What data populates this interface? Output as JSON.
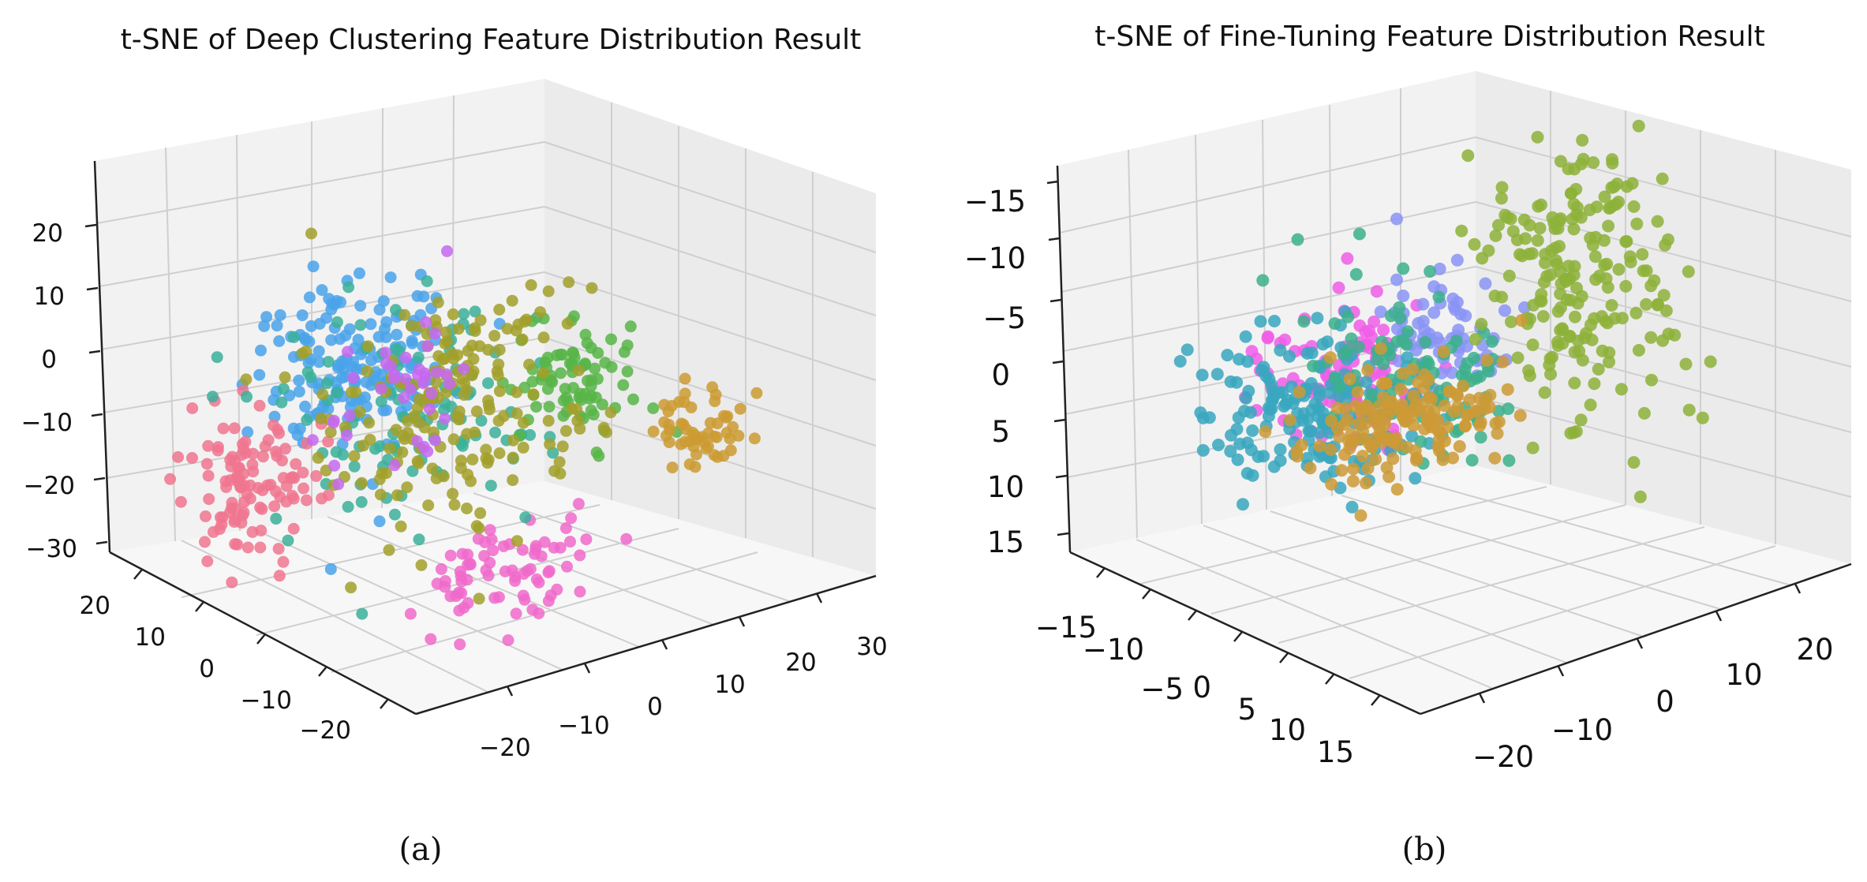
{
  "chart_data": [
    {
      "type": "scatter",
      "projection": "3d",
      "title": "t-SNE of Deep Clustering Feature Distribution Result",
      "caption": "(a)",
      "grid": true,
      "axes": {
        "x": {
          "ticks": [
            "−20",
            "−10",
            "0",
            "10",
            "20",
            "30"
          ],
          "range": [
            -25,
            35
          ]
        },
        "y": {
          "ticks": [
            "20",
            "10",
            "0",
            "−10",
            "−20"
          ],
          "range": [
            -28,
            28
          ]
        },
        "z": {
          "ticks": [
            "20",
            "10",
            "0",
            "−10",
            "−20",
            "−30"
          ],
          "range": [
            -33,
            28
          ]
        }
      },
      "clusters": [
        {
          "color": "#4aa3ea",
          "center": [
            -14,
            -4,
            14
          ],
          "spread": [
            6,
            5,
            6
          ],
          "n": 170
        },
        {
          "color": "#f0758f",
          "center": [
            -18,
            10,
            -10
          ],
          "spread": [
            4,
            4,
            5
          ],
          "n": 110
        },
        {
          "color": "#f06acb",
          "center": [
            2,
            -8,
            -22
          ],
          "spread": [
            6,
            3,
            3
          ],
          "n": 75
        },
        {
          "color": "#3bb09a",
          "center": [
            -4,
            2,
            0
          ],
          "spread": [
            8,
            6,
            7
          ],
          "n": 110
        },
        {
          "color": "#58b548",
          "center": [
            10,
            -12,
            6
          ],
          "spread": [
            4,
            3,
            4
          ],
          "n": 80
        },
        {
          "color": "#a2a02a",
          "center": [
            0,
            -2,
            2
          ],
          "spread": [
            9,
            6,
            9
          ],
          "n": 190
        },
        {
          "color": "#cc9b33",
          "center": [
            22,
            -18,
            -2
          ],
          "spread": [
            3,
            2,
            3
          ],
          "n": 55
        },
        {
          "color": "#c568ee",
          "center": [
            -6,
            0,
            6
          ],
          "spread": [
            5,
            4,
            5
          ],
          "n": 40
        }
      ]
    },
    {
      "type": "scatter",
      "projection": "3d",
      "title": "t-SNE of Fine-Tuning Feature Distribution Result",
      "caption": "(b)",
      "grid": true,
      "axes": {
        "x": {
          "ticks": [
            "−20",
            "−10",
            "0",
            "10",
            "20"
          ],
          "range": [
            -24,
            24
          ]
        },
        "y": {
          "ticks": [
            "−15",
            "−10",
            "−5",
            "0",
            "5",
            "10",
            "15"
          ],
          "range": [
            -18,
            18
          ]
        },
        "z": {
          "ticks": [
            "−15",
            "−10",
            "−5",
            "0",
            "5",
            "10",
            "15"
          ],
          "range": [
            -18,
            18
          ]
        }
      },
      "clusters": [
        {
          "color": "#f05ee8",
          "center": [
            -16,
            -8,
            -6
          ],
          "spread": [
            3,
            3,
            3
          ],
          "n": 110
        },
        {
          "color": "#8a94f4",
          "center": [
            -8,
            -10,
            -8
          ],
          "spread": [
            2.5,
            2.5,
            3
          ],
          "n": 70
        },
        {
          "color": "#38a7be",
          "center": [
            -14,
            -2,
            1
          ],
          "spread": [
            4,
            3.5,
            3.5
          ],
          "n": 170
        },
        {
          "color": "#3cb08c",
          "center": [
            4,
            4,
            5
          ],
          "spread": [
            4,
            4,
            4
          ],
          "n": 100
        },
        {
          "color": "#8db13a",
          "center": [
            12,
            -6,
            -6
          ],
          "spread": [
            4,
            4,
            6
          ],
          "n": 200
        },
        {
          "color": "#cc9a36",
          "center": [
            8,
            8,
            13
          ],
          "spread": [
            5,
            3,
            2
          ],
          "n": 160
        }
      ]
    }
  ]
}
